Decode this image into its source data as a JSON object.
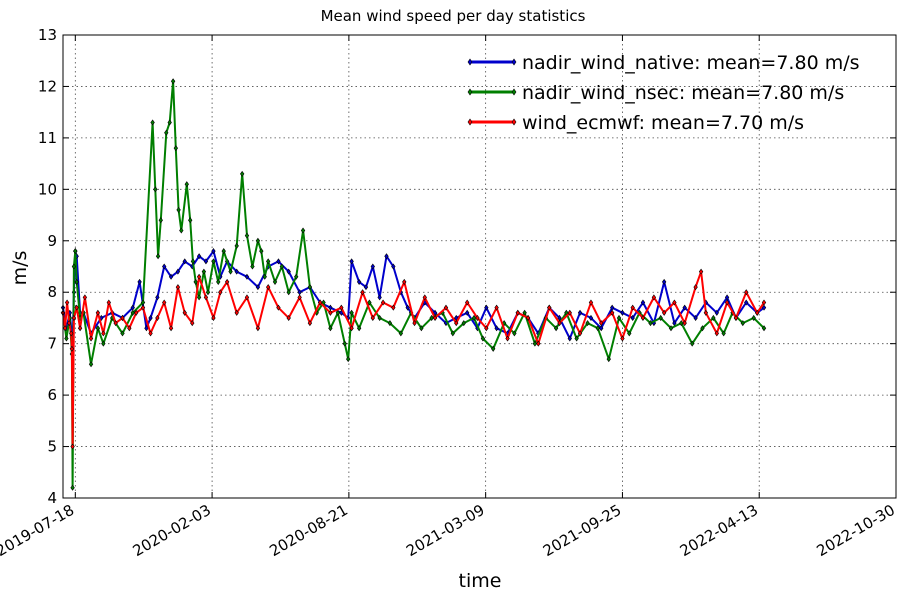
{
  "chart_data": {
    "type": "line",
    "title": "Mean wind speed per day statistics",
    "xlabel": "time",
    "ylabel": "m/s",
    "xlim": [
      "2019-06-30",
      "2022-10-30"
    ],
    "ylim": [
      4,
      13
    ],
    "x_ticks": [
      "2019-07-18",
      "2020-02-03",
      "2020-08-21",
      "2021-03-09",
      "2021-09-25",
      "2022-04-13",
      "2022-10-30"
    ],
    "y_ticks": [
      4,
      5,
      6,
      7,
      8,
      9,
      10,
      11,
      12,
      13
    ],
    "grid": true,
    "legend_position": "top-right",
    "series": [
      {
        "name": "nadir_wind_native: mean=7.80 m/s",
        "color": "#0000cc",
        "x": [
          "2019-06-30",
          "2019-07-05",
          "2019-07-10",
          "2019-07-14",
          "2019-07-16",
          "2019-07-18",
          "2019-07-20",
          "2019-07-25",
          "2019-07-30",
          "2019-08-10",
          "2019-08-25",
          "2019-09-10",
          "2019-09-25",
          "2019-10-10",
          "2019-10-20",
          "2019-10-30",
          "2019-11-05",
          "2019-11-15",
          "2019-11-25",
          "2019-12-05",
          "2019-12-15",
          "2019-12-25",
          "2020-01-05",
          "2020-01-15",
          "2020-01-25",
          "2020-02-05",
          "2020-02-15",
          "2020-02-25",
          "2020-03-10",
          "2020-03-25",
          "2020-04-10",
          "2020-04-25",
          "2020-05-10",
          "2020-05-25",
          "2020-06-10",
          "2020-06-25",
          "2020-07-10",
          "2020-07-25",
          "2020-08-10",
          "2020-08-20",
          "2020-08-25",
          "2020-09-05",
          "2020-09-15",
          "2020-09-25",
          "2020-10-05",
          "2020-10-15",
          "2020-10-25",
          "2020-11-05",
          "2020-11-15",
          "2020-11-25",
          "2020-12-10",
          "2020-12-25",
          "2021-01-10",
          "2021-01-25",
          "2021-02-10",
          "2021-02-25",
          "2021-03-10",
          "2021-03-25",
          "2021-04-10",
          "2021-04-25",
          "2021-05-10",
          "2021-05-25",
          "2021-06-10",
          "2021-06-25",
          "2021-07-10",
          "2021-07-25",
          "2021-08-10",
          "2021-08-25",
          "2021-09-10",
          "2021-09-25",
          "2021-10-10",
          "2021-10-25",
          "2021-11-10",
          "2021-11-25",
          "2021-12-10",
          "2021-12-25",
          "2022-01-10",
          "2022-01-25",
          "2022-02-10",
          "2022-02-25",
          "2022-03-10",
          "2022-03-25",
          "2022-04-10",
          "2022-04-20"
        ],
        "values": [
          7.7,
          7.3,
          7.6,
          7.0,
          8.0,
          8.8,
          8.7,
          7.6,
          7.6,
          7.2,
          7.5,
          7.6,
          7.5,
          7.7,
          8.2,
          7.3,
          7.5,
          7.9,
          8.5,
          8.3,
          8.4,
          8.6,
          8.5,
          8.7,
          8.6,
          8.8,
          8.3,
          8.6,
          8.4,
          8.3,
          8.1,
          8.5,
          8.6,
          8.4,
          8.0,
          8.1,
          7.8,
          7.7,
          7.6,
          7.5,
          8.6,
          8.2,
          8.1,
          8.5,
          7.9,
          8.7,
          8.5,
          8.0,
          7.7,
          7.5,
          7.8,
          7.6,
          7.4,
          7.5,
          7.6,
          7.3,
          7.7,
          7.3,
          7.2,
          7.6,
          7.5,
          7.2,
          7.7,
          7.5,
          7.1,
          7.6,
          7.5,
          7.3,
          7.7,
          7.6,
          7.5,
          7.8,
          7.4,
          8.2,
          7.4,
          7.7,
          7.5,
          7.8,
          7.6,
          7.9,
          7.5,
          7.8,
          7.6,
          7.7
        ]
      },
      {
        "name": "nadir_wind_nsec: mean=7.80 m/s",
        "color": "#007f00",
        "x": [
          "2019-06-30",
          "2019-07-05",
          "2019-07-10",
          "2019-07-13",
          "2019-07-14",
          "2019-07-16",
          "2019-07-18",
          "2019-07-20",
          "2019-07-25",
          "2019-07-30",
          "2019-08-10",
          "2019-08-20",
          "2019-08-28",
          "2019-09-10",
          "2019-09-25",
          "2019-10-10",
          "2019-10-25",
          "2019-11-08",
          "2019-11-12",
          "2019-11-16",
          "2019-11-20",
          "2019-11-28",
          "2019-12-03",
          "2019-12-08",
          "2019-12-12",
          "2019-12-16",
          "2019-12-20",
          "2019-12-28",
          "2020-01-02",
          "2020-01-06",
          "2020-01-10",
          "2020-01-15",
          "2020-01-22",
          "2020-01-28",
          "2020-02-05",
          "2020-02-12",
          "2020-02-20",
          "2020-03-01",
          "2020-03-10",
          "2020-03-18",
          "2020-03-25",
          "2020-04-02",
          "2020-04-10",
          "2020-04-15",
          "2020-04-20",
          "2020-04-25",
          "2020-05-05",
          "2020-05-15",
          "2020-05-25",
          "2020-06-05",
          "2020-06-15",
          "2020-06-25",
          "2020-07-05",
          "2020-07-15",
          "2020-07-25",
          "2020-08-05",
          "2020-08-15",
          "2020-08-20",
          "2020-08-25",
          "2020-09-05",
          "2020-09-20",
          "2020-10-05",
          "2020-10-20",
          "2020-11-05",
          "2020-11-20",
          "2020-12-05",
          "2020-12-20",
          "2021-01-05",
          "2021-01-20",
          "2021-02-05",
          "2021-02-20",
          "2021-03-05",
          "2021-03-20",
          "2021-04-05",
          "2021-04-20",
          "2021-05-05",
          "2021-05-20",
          "2021-06-05",
          "2021-06-20",
          "2021-07-05",
          "2021-07-20",
          "2021-08-05",
          "2021-08-20",
          "2021-09-05",
          "2021-09-20",
          "2021-10-05",
          "2021-10-20",
          "2021-11-05",
          "2021-11-20",
          "2021-12-05",
          "2021-12-20",
          "2022-01-05",
          "2022-01-20",
          "2022-02-05",
          "2022-02-20",
          "2022-03-05",
          "2022-03-20",
          "2022-04-05",
          "2022-04-20"
        ],
        "values": [
          7.6,
          7.1,
          7.5,
          6.8,
          4.2,
          8.5,
          8.8,
          8.2,
          7.5,
          7.6,
          6.6,
          7.3,
          7.0,
          7.5,
          7.2,
          7.6,
          7.8,
          11.3,
          10.0,
          8.7,
          9.4,
          11.1,
          11.3,
          12.1,
          10.8,
          9.6,
          9.2,
          10.1,
          9.4,
          8.6,
          8.2,
          7.9,
          8.4,
          8.0,
          8.6,
          8.2,
          8.8,
          8.4,
          8.9,
          10.3,
          9.1,
          8.5,
          9.0,
          8.8,
          8.3,
          8.6,
          8.2,
          8.5,
          8.0,
          8.3,
          9.2,
          8.1,
          7.6,
          7.8,
          7.3,
          7.6,
          7.0,
          6.7,
          7.6,
          7.3,
          7.8,
          7.5,
          7.4,
          7.2,
          7.6,
          7.3,
          7.5,
          7.6,
          7.2,
          7.4,
          7.5,
          7.1,
          6.9,
          7.4,
          7.2,
          7.6,
          7.0,
          7.5,
          7.3,
          7.6,
          7.1,
          7.4,
          7.3,
          6.7,
          7.5,
          7.2,
          7.6,
          7.4,
          7.5,
          7.3,
          7.4,
          7.0,
          7.3,
          7.5,
          7.2,
          7.6,
          7.4,
          7.5,
          7.3
        ]
      },
      {
        "name": "wind_ecmwf: mean=7.70 m/s",
        "color": "#ff0000",
        "x": [
          "2019-06-30",
          "2019-07-03",
          "2019-07-06",
          "2019-07-09",
          "2019-07-12",
          "2019-07-13",
          "2019-07-14",
          "2019-07-16",
          "2019-07-20",
          "2019-07-25",
          "2019-08-01",
          "2019-08-10",
          "2019-08-20",
          "2019-08-28",
          "2019-09-05",
          "2019-09-15",
          "2019-09-25",
          "2019-10-05",
          "2019-10-15",
          "2019-10-25",
          "2019-11-05",
          "2019-11-15",
          "2019-11-25",
          "2019-12-05",
          "2019-12-15",
          "2019-12-25",
          "2020-01-05",
          "2020-01-15",
          "2020-01-25",
          "2020-02-05",
          "2020-02-15",
          "2020-02-25",
          "2020-03-10",
          "2020-03-25",
          "2020-04-10",
          "2020-04-25",
          "2020-05-10",
          "2020-05-25",
          "2020-06-10",
          "2020-06-25",
          "2020-07-10",
          "2020-07-25",
          "2020-08-10",
          "2020-08-25",
          "2020-09-10",
          "2020-09-25",
          "2020-10-10",
          "2020-10-25",
          "2020-11-10",
          "2020-11-25",
          "2020-12-10",
          "2020-12-25",
          "2021-01-10",
          "2021-01-25",
          "2021-02-10",
          "2021-02-25",
          "2021-03-10",
          "2021-03-25",
          "2021-04-10",
          "2021-04-25",
          "2021-05-10",
          "2021-05-25",
          "2021-06-10",
          "2021-06-25",
          "2021-07-10",
          "2021-07-25",
          "2021-08-10",
          "2021-08-25",
          "2021-09-10",
          "2021-09-25",
          "2021-10-10",
          "2021-10-25",
          "2021-11-10",
          "2021-11-25",
          "2021-12-10",
          "2021-12-25",
          "2022-01-10",
          "2022-01-18",
          "2022-01-25",
          "2022-02-10",
          "2022-02-25",
          "2022-03-10",
          "2022-03-25",
          "2022-04-10",
          "2022-04-20"
        ],
        "values": [
          7.6,
          7.3,
          7.8,
          7.4,
          7.2,
          6.9,
          5.0,
          7.5,
          7.7,
          7.3,
          7.9,
          7.1,
          7.6,
          7.2,
          7.8,
          7.4,
          7.5,
          7.3,
          7.6,
          7.7,
          7.2,
          7.5,
          7.8,
          7.3,
          8.1,
          7.6,
          7.4,
          8.3,
          7.9,
          7.5,
          8.0,
          8.2,
          7.6,
          7.9,
          7.3,
          8.1,
          7.7,
          7.5,
          7.9,
          7.4,
          7.8,
          7.6,
          7.7,
          7.3,
          8.0,
          7.5,
          7.8,
          7.7,
          8.2,
          7.4,
          7.9,
          7.5,
          7.7,
          7.4,
          7.8,
          7.5,
          7.3,
          7.7,
          7.1,
          7.6,
          7.5,
          7.0,
          7.7,
          7.4,
          7.6,
          7.2,
          7.8,
          7.4,
          7.6,
          7.1,
          7.7,
          7.5,
          7.9,
          7.6,
          7.8,
          7.4,
          8.1,
          8.4,
          7.6,
          7.2,
          7.8,
          7.5,
          8.0,
          7.6,
          7.8
        ]
      }
    ]
  }
}
